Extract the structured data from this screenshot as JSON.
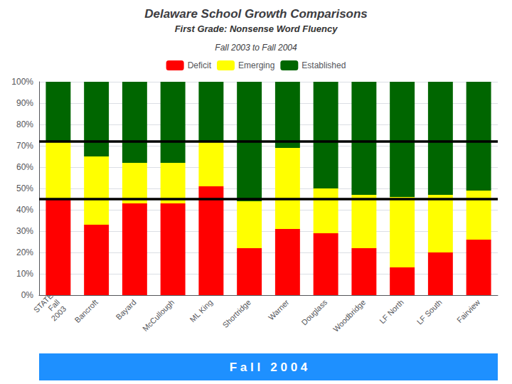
{
  "chart_data": {
    "type": "bar",
    "stacked": true,
    "title": "Delaware School Growth Comparisons",
    "subtitle": "First Grade: Nonsense Word Fluency",
    "annotations": [
      "Fall 2003 to Fall 2004"
    ],
    "footer": {
      "text": "F a l l   2 0 0 4",
      "color": "#1E90FF"
    },
    "categories": [
      "STATE\nFall\n2003",
      "Bancroft",
      "Bayard",
      "McCullough",
      "ML King",
      "Shortridge",
      "Warner",
      "Douglass",
      "Woodbridge",
      "LF North",
      "LF South",
      "Fairview"
    ],
    "series": [
      {
        "name": "Deficit",
        "color": "#FF0000",
        "values": [
          45,
          33,
          43,
          43,
          51,
          22,
          31,
          29,
          22,
          13,
          20,
          26
        ]
      },
      {
        "name": "Emerging",
        "color": "#FFFF00",
        "values": [
          27,
          32,
          19,
          19,
          21,
          22,
          38,
          21,
          25,
          33,
          27,
          23
        ]
      },
      {
        "name": "Established",
        "color": "#006600",
        "values": [
          28,
          35,
          38,
          38,
          28,
          56,
          31,
          50,
          53,
          54,
          53,
          51
        ]
      }
    ],
    "reference_lines": [
      {
        "value": 45,
        "color": "#000000"
      },
      {
        "value": 72,
        "color": "#000000"
      }
    ],
    "ylim": [
      0,
      100
    ],
    "yticks": [
      {
        "value": 0,
        "label": "0%"
      },
      {
        "value": 10,
        "label": "10%"
      },
      {
        "value": 20,
        "label": "20%"
      },
      {
        "value": 30,
        "label": "30%"
      },
      {
        "value": 40,
        "label": "40%"
      },
      {
        "value": 50,
        "label": "50%"
      },
      {
        "value": 60,
        "label": "60%"
      },
      {
        "value": 70,
        "label": "70%"
      },
      {
        "value": 80,
        "label": "80%"
      },
      {
        "value": 90,
        "label": "90%"
      },
      {
        "value": 100,
        "label": "100%"
      }
    ],
    "grid": true,
    "legend": "top"
  }
}
